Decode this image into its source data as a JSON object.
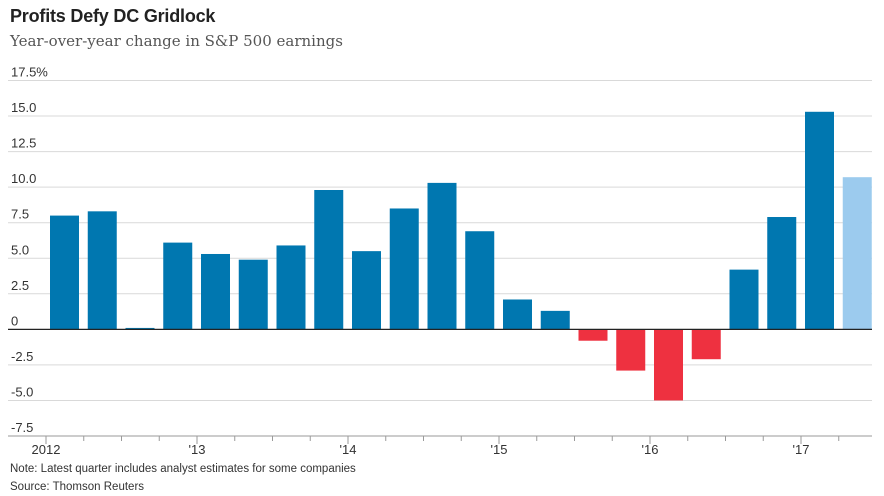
{
  "title": "Profits Defy DC Gridlock",
  "subtitle": "Year-over-year change in S&P 500 earnings",
  "note": "Note: Latest quarter includes analyst estimates for some companies",
  "source": "Source: Thomson Reuters",
  "colors": {
    "positive": "#0077b0",
    "negative": "#ee3140",
    "estimate": "#9ccbee",
    "grid": "#d9d9d9",
    "zero_line": "#222222"
  },
  "chart_data": {
    "type": "bar",
    "title": "Profits Defy DC Gridlock",
    "subtitle": "Year-over-year change in S&P 500 earnings",
    "ylim": [
      -7.5,
      17.5
    ],
    "yticks": [
      -7.5,
      -5.0,
      -2.5,
      0,
      2.5,
      5.0,
      7.5,
      10.0,
      12.5,
      15.0,
      17.5
    ],
    "ytick_labels": [
      "-7.5",
      "-5.0",
      "-2.5",
      "0",
      "2.5",
      "5.0",
      "7.5",
      "10.0",
      "12.5",
      "15.0",
      "17.5%"
    ],
    "xtick_labels": [
      "2012",
      "'13",
      "'14",
      "'15",
      "'16",
      "'17"
    ],
    "grid": true,
    "categories": [
      "Q1 2012",
      "Q2 2012",
      "Q3 2012",
      "Q4 2012",
      "Q1 2013",
      "Q2 2013",
      "Q3 2013",
      "Q4 2013",
      "Q1 2014",
      "Q2 2014",
      "Q3 2014",
      "Q4 2014",
      "Q1 2015",
      "Q2 2015",
      "Q3 2015",
      "Q4 2015",
      "Q1 2016",
      "Q2 2016",
      "Q3 2016",
      "Q4 2016",
      "Q1 2017",
      "Q2 2017"
    ],
    "values": [
      8.0,
      8.3,
      0.1,
      6.1,
      5.3,
      4.9,
      5.9,
      9.8,
      5.5,
      8.5,
      10.3,
      6.9,
      2.1,
      1.3,
      -0.8,
      -2.9,
      -5.0,
      -2.1,
      4.2,
      7.9,
      15.3,
      10.7
    ],
    "estimate_index": 21
  }
}
